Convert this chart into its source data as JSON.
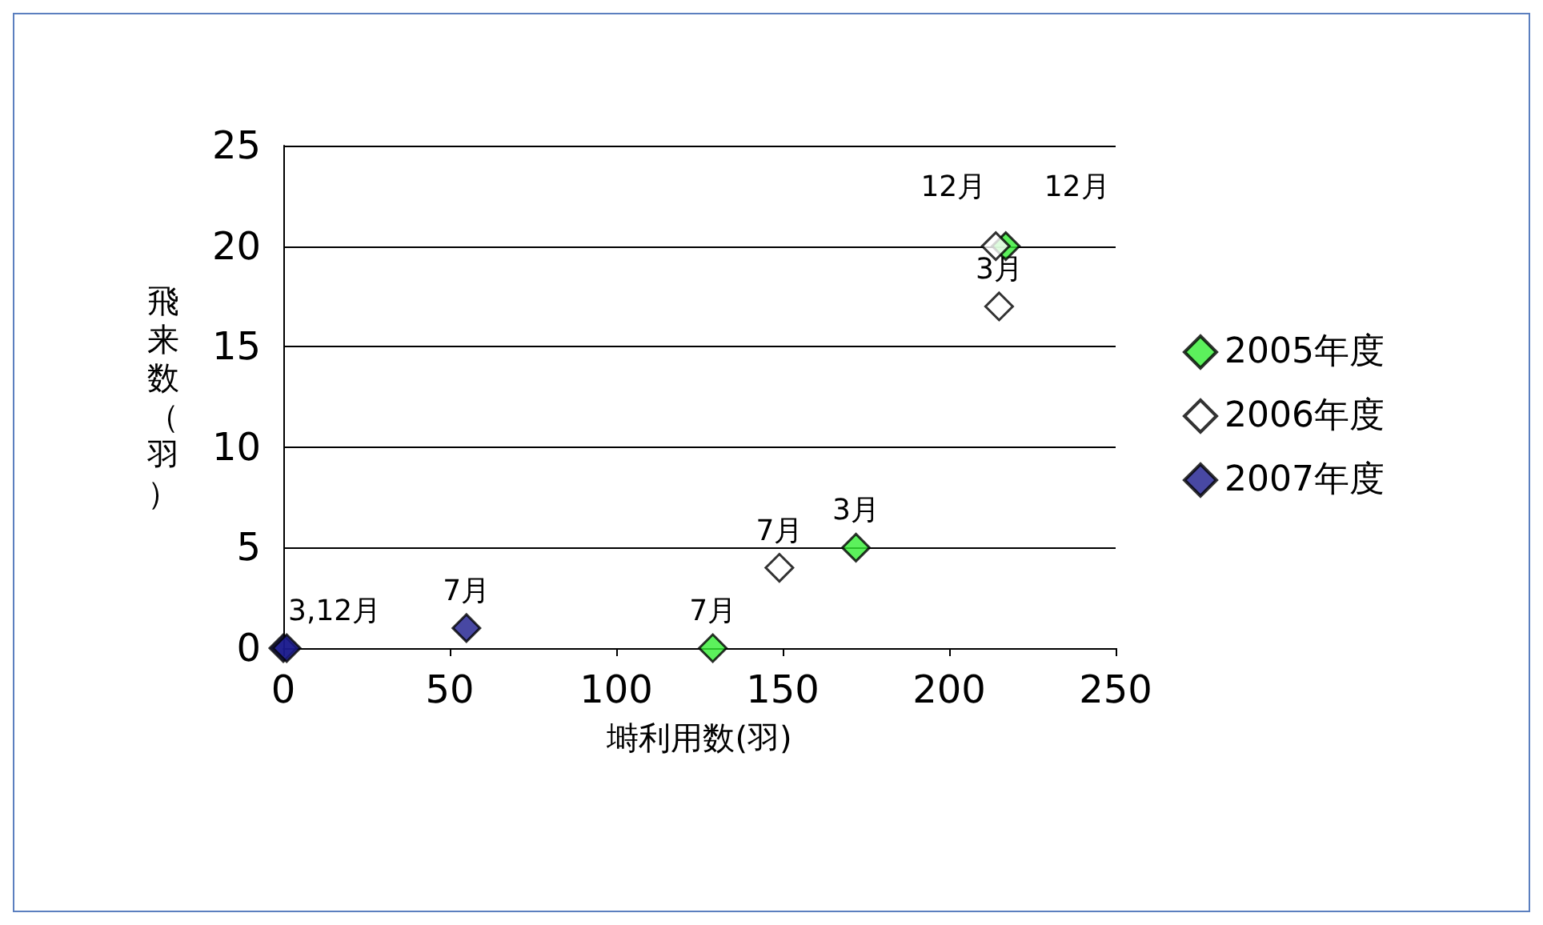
{
  "chart_data": {
    "type": "scatter",
    "xlabel": "塒利用数(羽)",
    "ylabel": "飛来数（羽）",
    "xlim": [
      0,
      250
    ],
    "xticks": [
      0,
      50,
      100,
      150,
      200,
      250
    ],
    "ylim": [
      0,
      25
    ],
    "yticks": [
      0,
      5,
      10,
      15,
      20,
      25
    ],
    "grid": "y",
    "legend": "right",
    "marker": "diamond",
    "series": [
      {
        "name": "2005年度",
        "color": "#33ee33",
        "x": [
          129,
          172,
          217
        ],
        "values": [
          0,
          5,
          20
        ]
      },
      {
        "name": "2006年度",
        "color": "#ffffff",
        "x": [
          149,
          214,
          215
        ],
        "values": [
          4,
          20,
          17
        ]
      },
      {
        "name": "2007年度",
        "color": "#1a1a8c",
        "x": [
          0,
          1,
          55
        ],
        "values": [
          0,
          0,
          1
        ]
      }
    ],
    "annotations": [
      {
        "text": "3,12月",
        "x": 1,
        "y": 0
      },
      {
        "text": "7月",
        "x": 55,
        "y": 1
      },
      {
        "text": "7月",
        "x": 129,
        "y": 0
      },
      {
        "text": "7月",
        "x": 149,
        "y": 4
      },
      {
        "text": "3月",
        "x": 172,
        "y": 5
      },
      {
        "text": "12月",
        "x": 214,
        "y": 20
      },
      {
        "text": "12月",
        "x": 217,
        "y": 20
      },
      {
        "text": "3月",
        "x": 215,
        "y": 17
      }
    ]
  }
}
